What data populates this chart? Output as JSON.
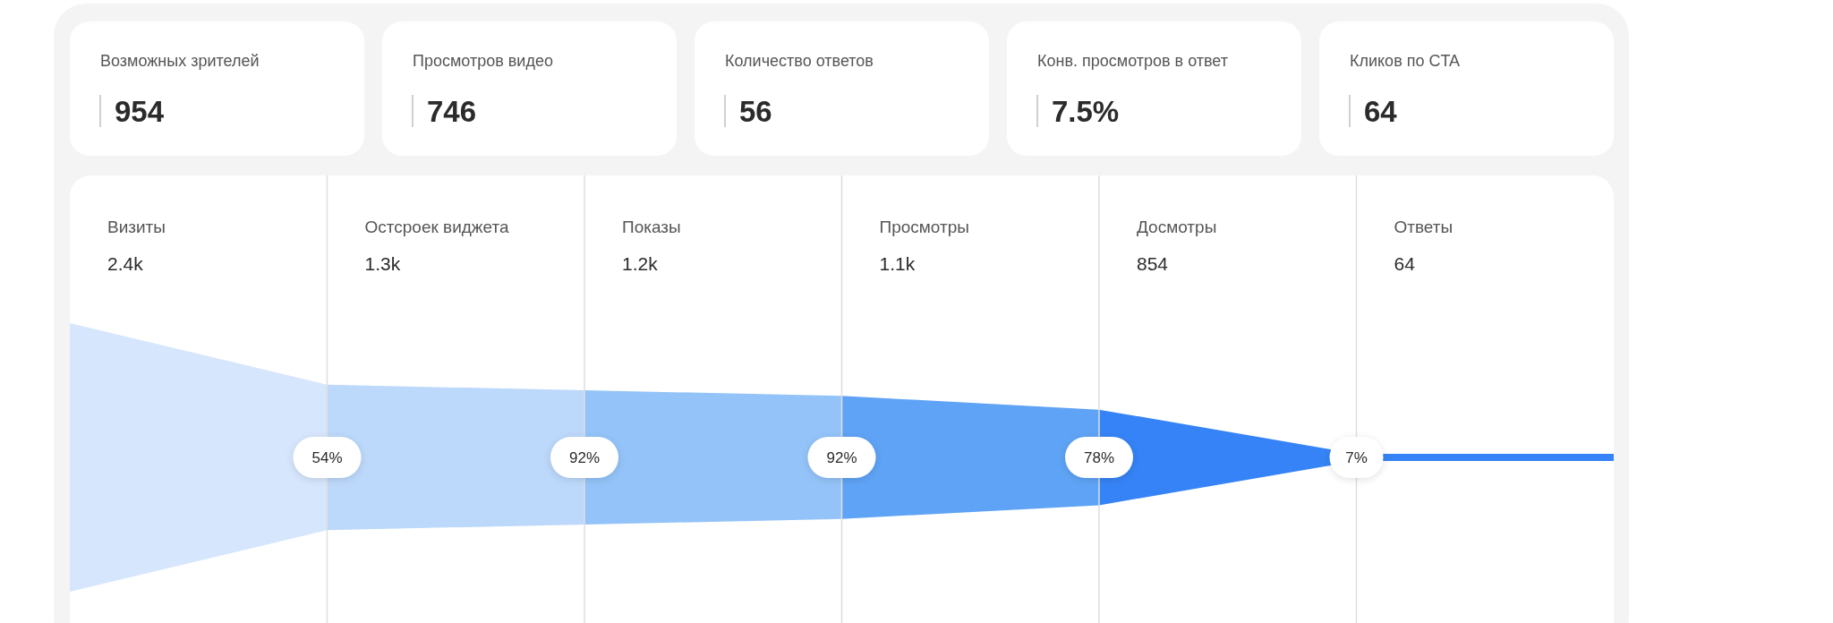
{
  "chart_data": [
    {
      "type": "other",
      "annotations": [
        "Возможных зрителей",
        "954",
        "Просмотров видео",
        "746",
        "Количество ответов",
        "56",
        "Конв. просмотров в ответ",
        "7.5%",
        "Кликов по CTA",
        "64"
      ]
    },
    {
      "type": "other",
      "categories": [
        "Визиты",
        "Остсроек виджета",
        "Показы",
        "Просмотры",
        "Досмотры",
        "Ответы"
      ],
      "values": [
        2400,
        1300,
        1200,
        1100,
        854,
        64
      ],
      "value_labels": [
        "2.4k",
        "1.3k",
        "1.2k",
        "1.1k",
        "854",
        "64"
      ],
      "colors": [
        "#d6e6fc",
        "#bcd8fa",
        "#93c3f8",
        "#5ea3f5",
        "#3583f6",
        "#3583f6"
      ],
      "annotations": [
        "54%",
        "92%",
        "92%",
        "78%",
        "7%"
      ]
    }
  ]
}
